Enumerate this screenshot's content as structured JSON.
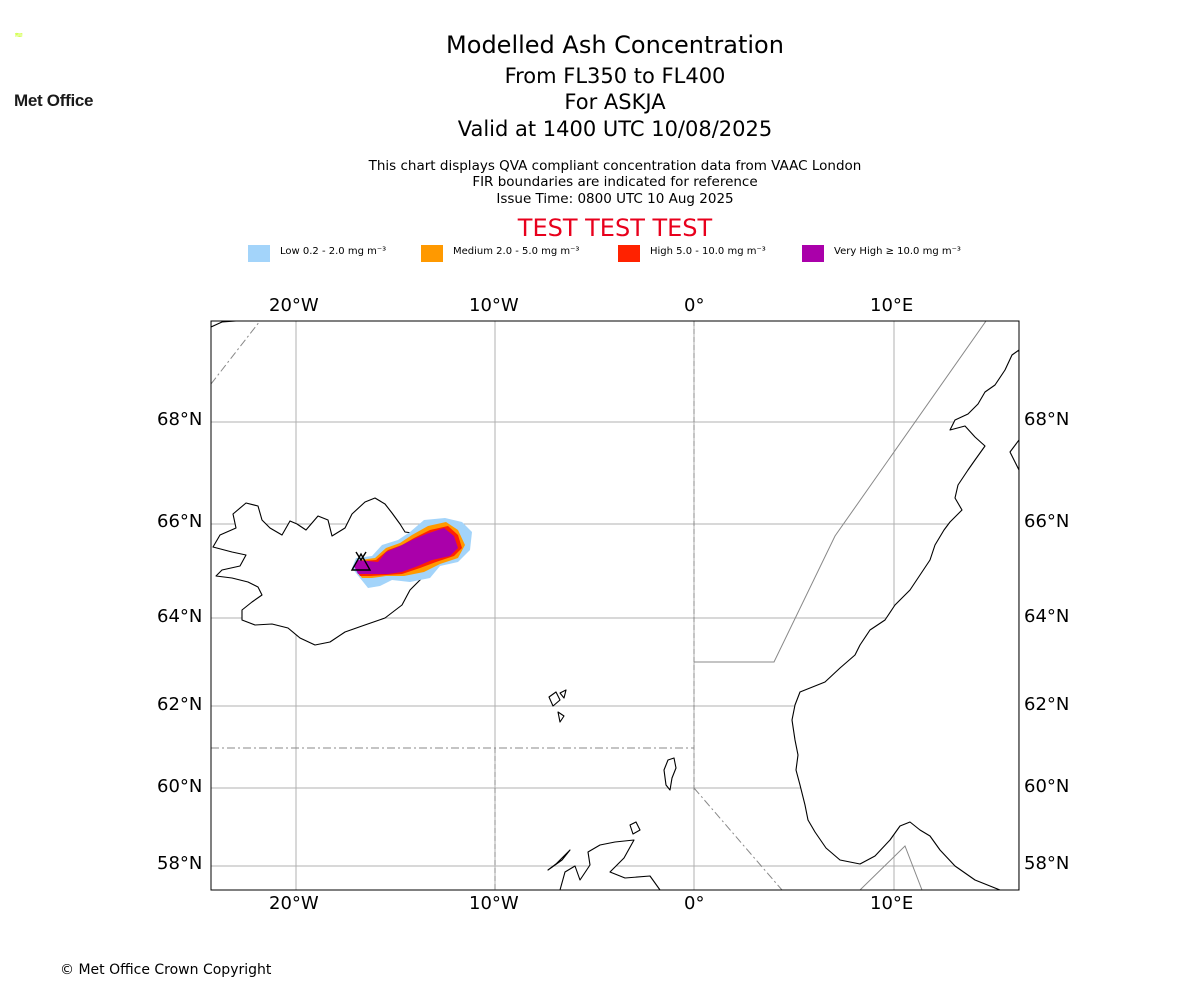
{
  "header": {
    "logo_text": "Met Office",
    "title": "Modelled Ash Concentration",
    "subtitle_levels": "From FL350 to FL400",
    "subtitle_volcano": "For ASKJA",
    "subtitle_valid": "Valid at 1400 UTC 10/08/2025",
    "info_line1": "This chart displays QVA compliant concentration data from VAAC London",
    "info_line2": "FIR boundaries are indicated for reference",
    "info_line3": "Issue Time: 0800 UTC 10 Aug 2025",
    "test_banner": "TEST TEST TEST"
  },
  "legend": {
    "items": [
      {
        "label": "Low 0.2 - 2.0 mg m⁻³",
        "color": "#a3d4fa"
      },
      {
        "label": "Medium 2.0 - 5.0 mg m⁻³",
        "color": "#ff9900"
      },
      {
        "label": "High 5.0 - 10.0 mg m⁻³",
        "color": "#ff2200"
      },
      {
        "label": "Very High  ≥  10.0 mg m⁻³",
        "color": "#aa00aa"
      }
    ]
  },
  "map": {
    "lon_ticks": [
      "20°W",
      "10°W",
      "0°",
      "10°E"
    ],
    "lat_ticks": [
      "68°N",
      "66°N",
      "64°N",
      "62°N",
      "60°N",
      "58°N"
    ],
    "gridline_color": "#b0b0b0",
    "fir_line_color": "#888888",
    "volcano_icon": "volcano-triangle-icon"
  },
  "footer": {
    "copyright": "© Met Office Crown Copyright"
  }
}
